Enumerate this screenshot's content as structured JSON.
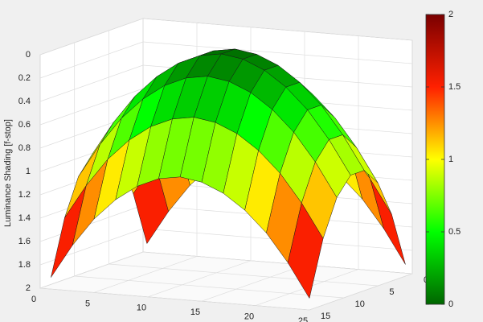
{
  "chart_data": {
    "type": "surface",
    "zlabel": "Luminance Shading [f-stop]",
    "x": [
      1,
      3,
      5,
      7,
      9,
      11,
      13,
      15,
      17,
      19,
      21,
      23,
      25
    ],
    "y": [
      1,
      3,
      5,
      7,
      9,
      11,
      13,
      15
    ],
    "values": [
      [
        1.9,
        1.61,
        1.37,
        1.19,
        1.06,
        0.98,
        0.95,
        0.98,
        1.06,
        1.19,
        1.37,
        1.61,
        1.9
      ],
      [
        1.43,
        1.14,
        0.9,
        0.72,
        0.59,
        0.51,
        0.48,
        0.51,
        0.59,
        0.72,
        0.9,
        1.14,
        1.43
      ],
      [
        1.12,
        0.83,
        0.59,
        0.41,
        0.28,
        0.2,
        0.17,
        0.2,
        0.28,
        0.41,
        0.59,
        0.83,
        1.12
      ],
      [
        0.97,
        0.68,
        0.44,
        0.26,
        0.13,
        0.05,
        0.02,
        0.05,
        0.13,
        0.26,
        0.44,
        0.68,
        0.97
      ],
      [
        0.97,
        0.68,
        0.44,
        0.26,
        0.13,
        0.05,
        0.02,
        0.05,
        0.13,
        0.26,
        0.44,
        0.68,
        0.97
      ],
      [
        1.12,
        0.83,
        0.59,
        0.41,
        0.28,
        0.2,
        0.17,
        0.2,
        0.28,
        0.41,
        0.59,
        0.83,
        1.12
      ],
      [
        1.43,
        1.14,
        0.9,
        0.72,
        0.59,
        0.51,
        0.48,
        0.51,
        0.59,
        0.72,
        0.9,
        1.14,
        1.43
      ],
      [
        1.9,
        1.61,
        1.37,
        1.19,
        1.06,
        0.98,
        0.95,
        0.98,
        1.06,
        1.19,
        1.37,
        1.61,
        1.9
      ]
    ],
    "xlim": [
      0,
      25
    ],
    "xticks": [
      0,
      5,
      10,
      15,
      20,
      25
    ],
    "ylim": [
      0,
      15
    ],
    "yticks": [
      0,
      5,
      10,
      15
    ],
    "zlim": [
      0,
      2
    ],
    "zticks": [
      0,
      0.2,
      0.4,
      0.6,
      0.8,
      1,
      1.2,
      1.4,
      1.6,
      1.8,
      2
    ],
    "zreverse": true,
    "grid": true,
    "colormap": [
      "#006600",
      "#00ff00",
      "#ffff00",
      "#ff2000",
      "#7a0000"
    ],
    "clim": [
      0,
      2
    ],
    "colorbar_ticks": [
      0,
      0.5,
      1,
      1.5,
      2
    ]
  }
}
